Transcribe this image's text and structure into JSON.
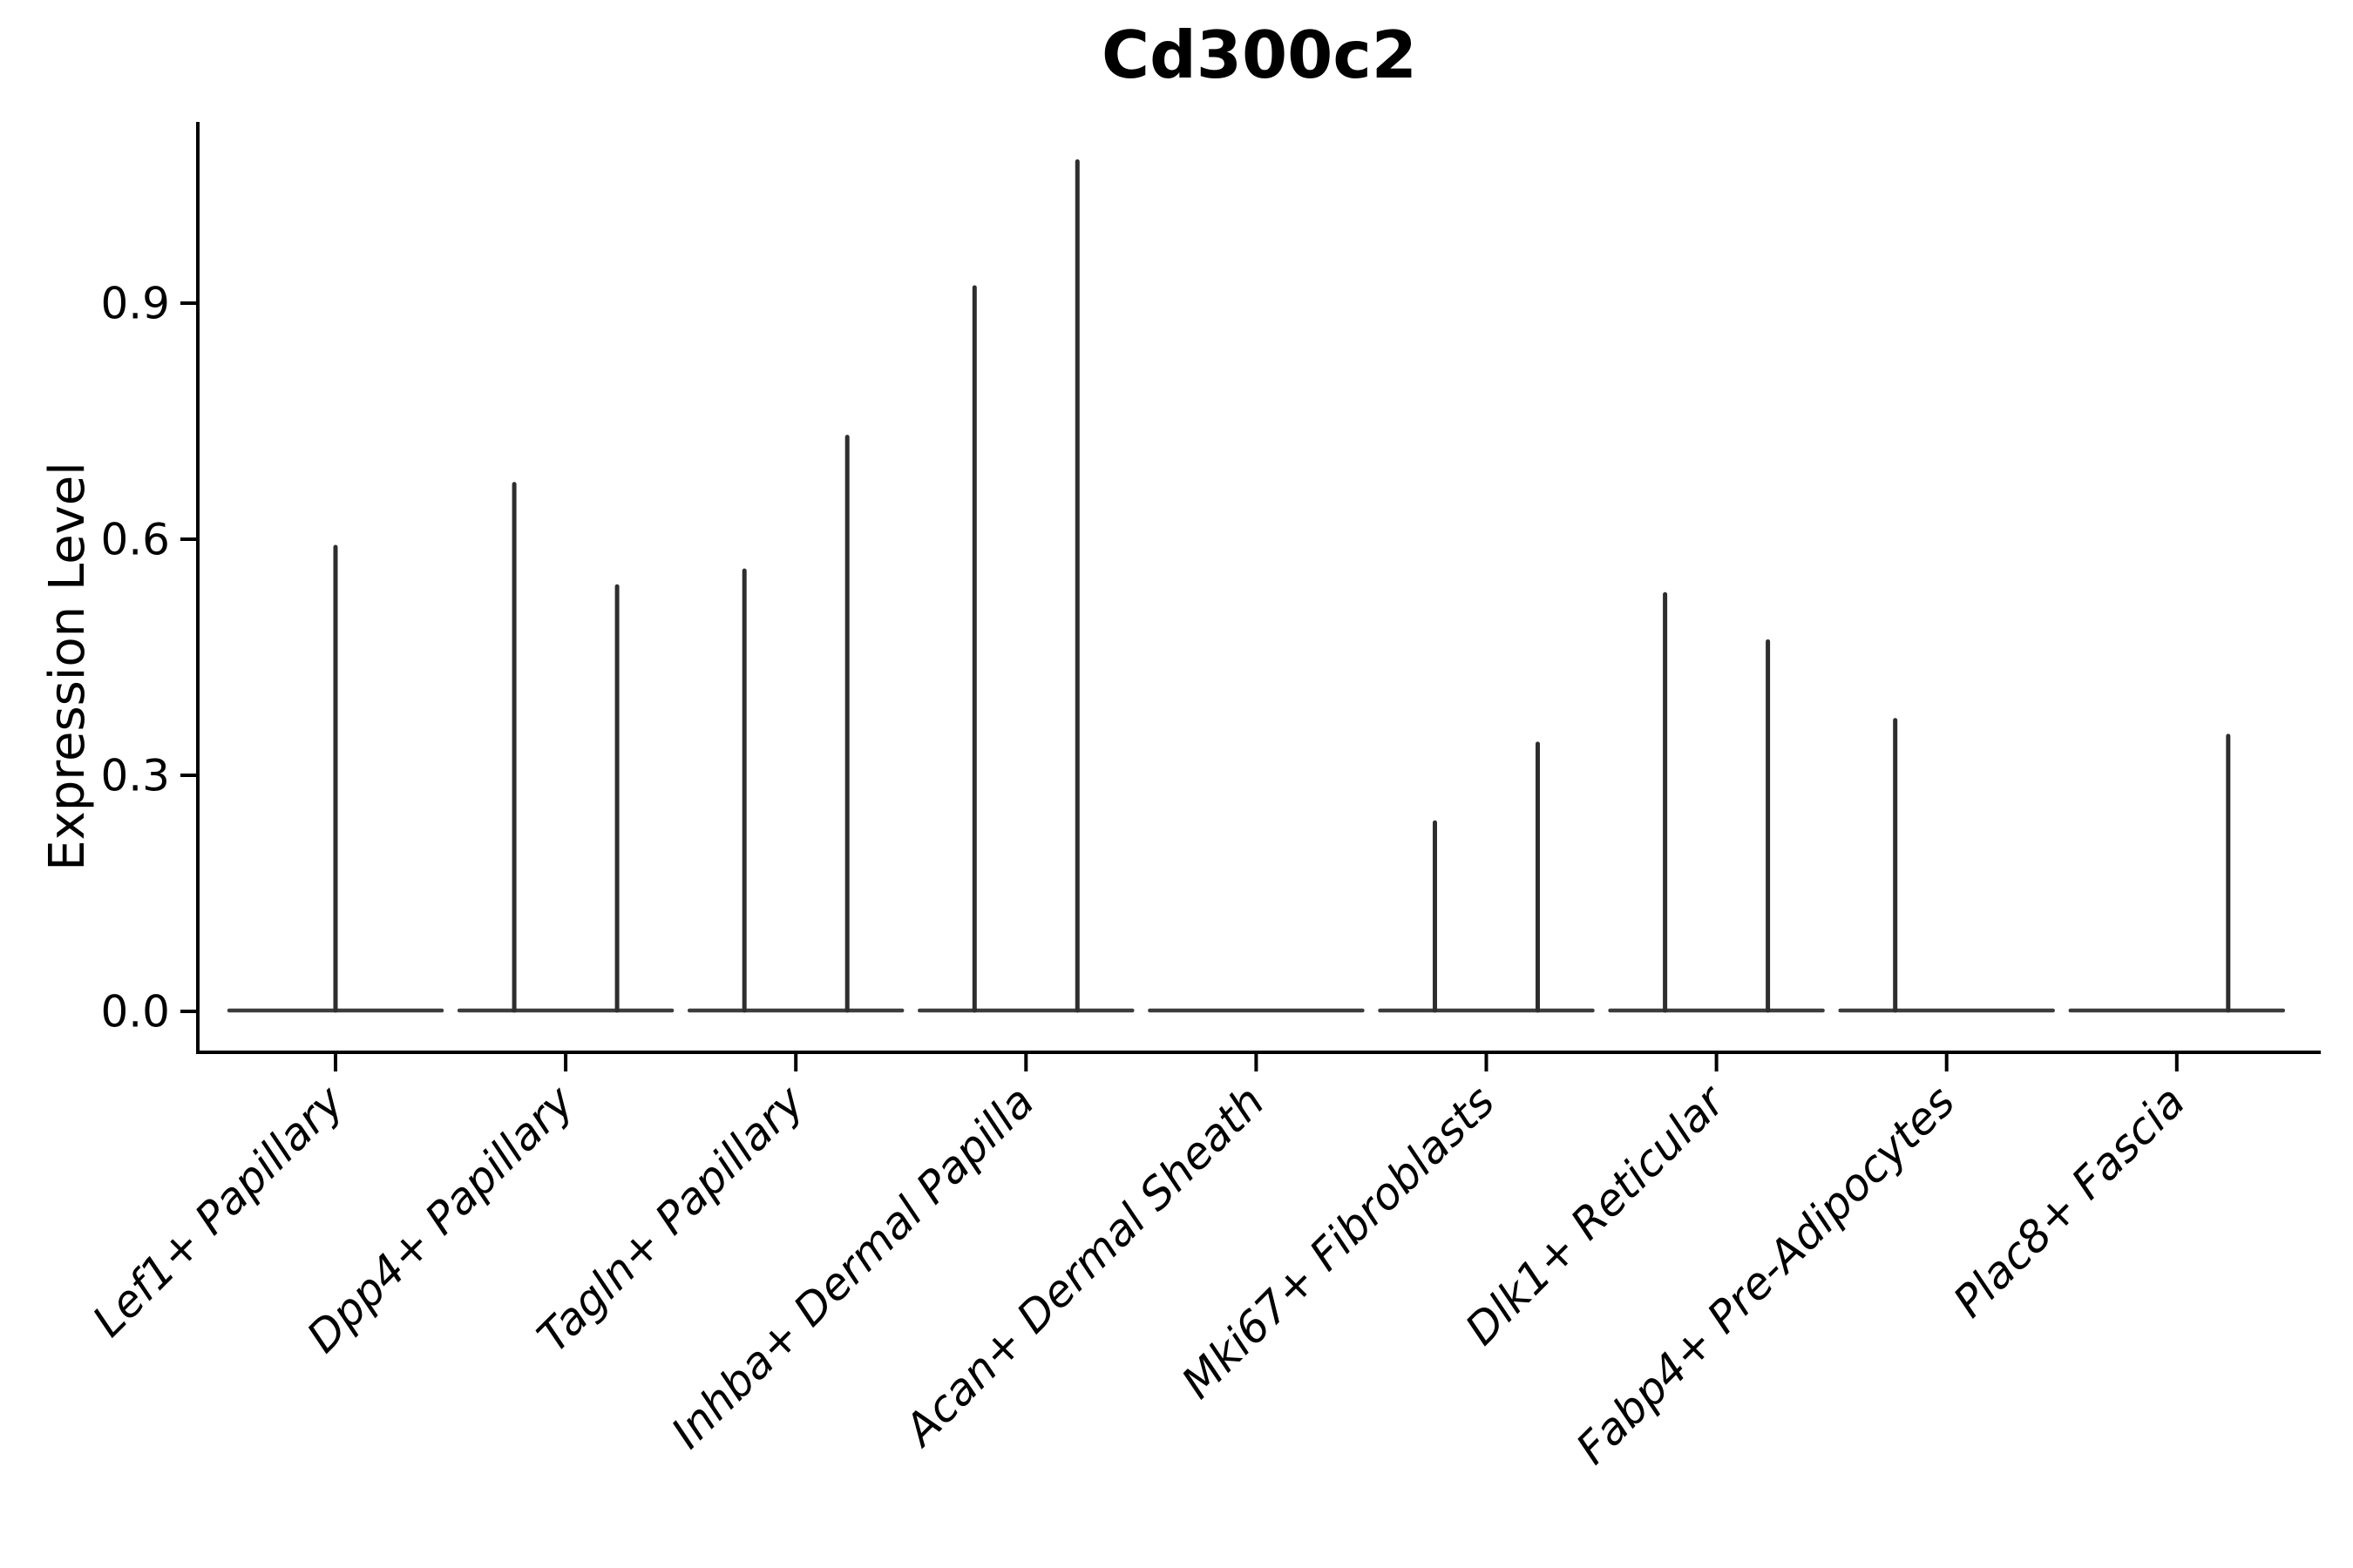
{
  "figure": {
    "background_color": "#ffffff"
  },
  "chart_data": {
    "type": "violin",
    "title": "Cd300c2",
    "xlabel": "",
    "ylabel": "Expression Level",
    "ylim": [
      -0.05,
      1.13
    ],
    "grid": false,
    "legend": null,
    "axis_color": "#000000",
    "violin_color": "#2e2e2e",
    "baseline_color": "#3d3d3d",
    "yticks": [
      {
        "label": "0.0",
        "value": 0.0
      },
      {
        "label": "0.3",
        "value": 0.3
      },
      {
        "label": "0.6",
        "value": 0.6
      },
      {
        "label": "0.9",
        "value": 0.9
      }
    ],
    "x_tick_label_rotation_deg": 45,
    "categories": [
      {
        "label": "Lef1+ Papillary",
        "violins": [
          {
            "position": "center",
            "max_expression": 0.59
          }
        ]
      },
      {
        "label": "Dpp4+ Papillary",
        "violins": [
          {
            "position": "left",
            "max_expression": 0.67
          },
          {
            "position": "right",
            "max_expression": 0.54
          }
        ]
      },
      {
        "label": "Tagln+ Papillary",
        "violins": [
          {
            "position": "left",
            "max_expression": 0.56
          },
          {
            "position": "right",
            "max_expression": 0.73
          }
        ]
      },
      {
        "label": "Inhba+ Dermal Papilla",
        "violins": [
          {
            "position": "left",
            "max_expression": 0.92
          },
          {
            "position": "right",
            "max_expression": 1.08
          }
        ]
      },
      {
        "label": "Acan+ Dermal Sheath",
        "violins": []
      },
      {
        "label": "Mki67+ Fibroblasts",
        "violins": [
          {
            "position": "left",
            "max_expression": 0.24
          },
          {
            "position": "right",
            "max_expression": 0.34
          }
        ]
      },
      {
        "label": "Dlk1+ Reticular",
        "violins": [
          {
            "position": "left",
            "max_expression": 0.53
          },
          {
            "position": "right",
            "max_expression": 0.47
          }
        ]
      },
      {
        "label": "Fabp4+ Pre-Adipocytes",
        "violins": [
          {
            "position": "left",
            "max_expression": 0.37
          }
        ]
      },
      {
        "label": "Plac8+ Fascia",
        "violins": [
          {
            "position": "right",
            "max_expression": 0.35
          }
        ]
      }
    ],
    "note": "Violin bodies are collapsed flat at expression 0 with narrow density spikes up to the max expression value"
  }
}
